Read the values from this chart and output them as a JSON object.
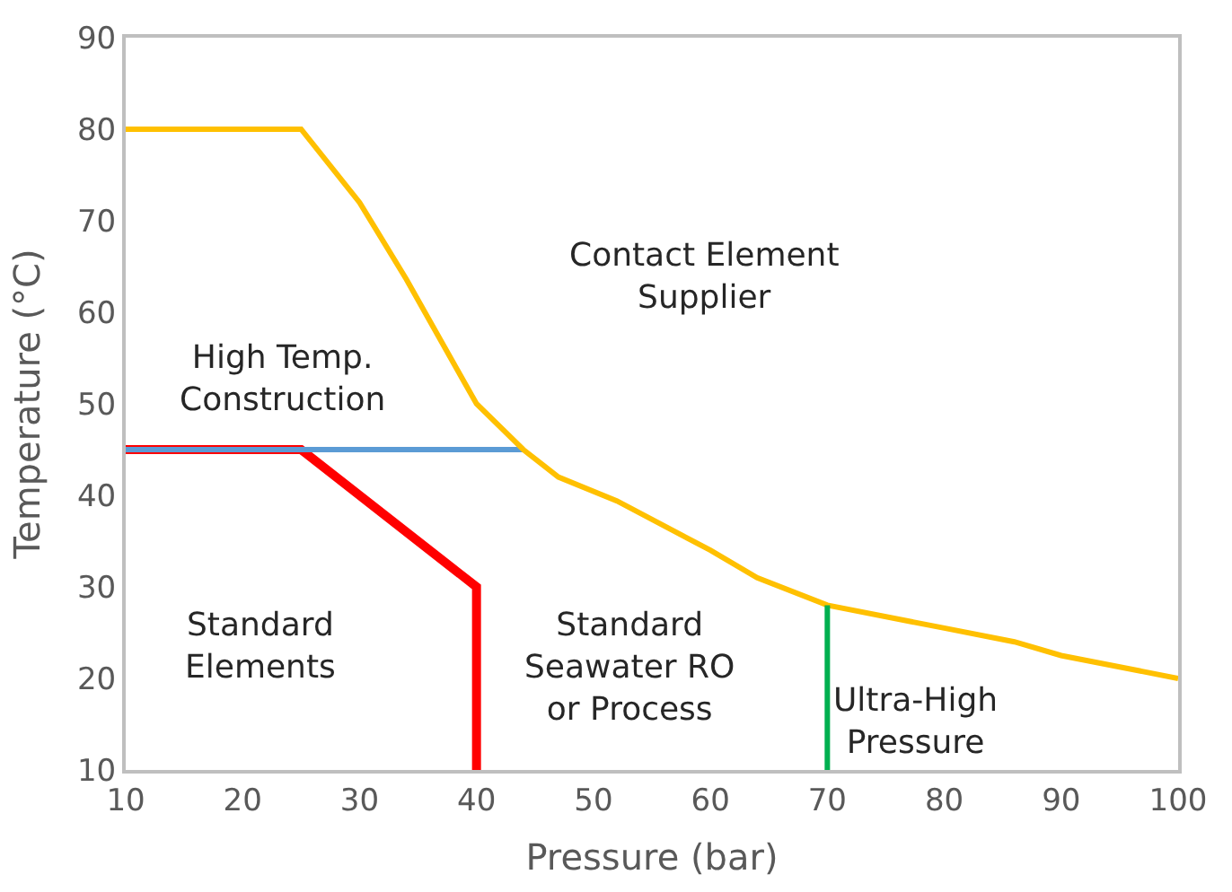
{
  "chart_data": {
    "type": "line",
    "xlabel": "Pressure (bar)",
    "ylabel": "Temperature (°C)",
    "series": [
      {
        "color": "#ff0000",
        "x": [
          10,
          25,
          40,
          40
        ],
        "values": [
          45,
          45,
          30,
          10
        ]
      },
      {
        "color": "#5b9bd5",
        "x": [
          10,
          44
        ],
        "values": [
          45,
          45
        ]
      },
      {
        "color": "#ffc000",
        "x": [
          10,
          25,
          30,
          34,
          40,
          44,
          47,
          52,
          60,
          64,
          70,
          80,
          86,
          90,
          100
        ],
        "values": [
          80,
          80,
          72,
          63.6,
          50,
          45,
          42,
          39.4,
          34,
          31,
          28,
          25.5,
          24,
          22.5,
          20
        ]
      },
      {
        "color": "#00b050",
        "x": [
          70,
          70
        ],
        "values": [
          10,
          28
        ]
      }
    ],
    "xlim": [
      10,
      100
    ],
    "xticks": [
      10,
      20,
      30,
      40,
      50,
      60,
      70,
      80,
      90,
      100
    ],
    "ylim": [
      10,
      90
    ],
    "yticks": [
      10,
      20,
      30,
      40,
      50,
      60,
      70,
      80,
      90
    ],
    "marker": "none",
    "line_style": "solid",
    "annotations": [
      "Contact Element\nSupplier",
      "High Temp.\nConstruction",
      "Standard\nElements",
      "Standard\nSeawater RO\nor Process",
      "Ultra-High\nPressure"
    ]
  }
}
